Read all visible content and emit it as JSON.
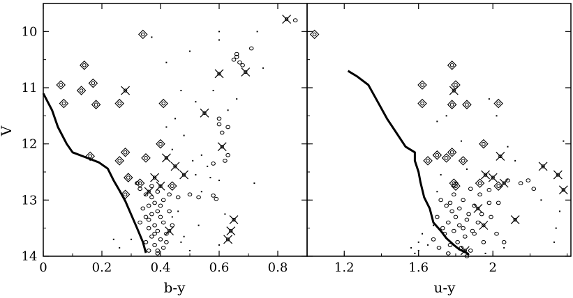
{
  "chart_data": [
    {
      "type": "scatter",
      "panel": "left",
      "xlabel": "b-y",
      "ylabel": "V",
      "xlim": [
        0,
        0.9
      ],
      "ylim": [
        14,
        9.5
      ],
      "y_inverted": true,
      "x_ticks": [
        0,
        0.2,
        0.4,
        0.6,
        0.8
      ],
      "x_tick_labels": [
        "0",
        "0.2",
        "0.4",
        "0.6",
        "0.8"
      ],
      "y_ticks": [
        10,
        11,
        12,
        13,
        14
      ],
      "y_tick_labels": [
        "10",
        "11",
        "12",
        "13",
        "14"
      ],
      "series": [
        {
          "marker": "cross",
          "points": [
            [
              0.28,
              11.05
            ],
            [
              0.55,
              11.45
            ],
            [
              0.6,
              10.75
            ],
            [
              0.69,
              10.72
            ],
            [
              0.83,
              9.78
            ],
            [
              0.61,
              12.05
            ],
            [
              0.45,
              12.4
            ],
            [
              0.48,
              12.55
            ],
            [
              0.42,
              12.25
            ],
            [
              0.4,
              12.75
            ],
            [
              0.38,
              12.6
            ],
            [
              0.65,
              13.35
            ],
            [
              0.64,
              13.55
            ],
            [
              0.63,
              13.7
            ],
            [
              0.43,
              13.55
            ],
            [
              0.36,
              12.85
            ]
          ]
        },
        {
          "marker": "diamond",
          "points": [
            [
              0.34,
              10.05
            ],
            [
              0.14,
              10.6
            ],
            [
              0.06,
              10.95
            ],
            [
              0.13,
              11.05
            ],
            [
              0.17,
              10.92
            ],
            [
              0.07,
              11.28
            ],
            [
              0.18,
              11.3
            ],
            [
              0.26,
              11.28
            ],
            [
              0.41,
              11.28
            ],
            [
              0.16,
              12.22
            ],
            [
              0.26,
              12.3
            ],
            [
              0.28,
              12.15
            ],
            [
              0.4,
              12.0
            ],
            [
              0.35,
              12.25
            ],
            [
              0.29,
              12.6
            ],
            [
              0.28,
              12.9
            ],
            [
              0.44,
              12.75
            ],
            [
              0.33,
              12.7
            ]
          ]
        },
        {
          "marker": "circle",
          "points": [
            [
              0.32,
              12.7
            ],
            [
              0.33,
              12.8
            ],
            [
              0.35,
              12.9
            ],
            [
              0.37,
              12.95
            ],
            [
              0.38,
              13.05
            ],
            [
              0.36,
              13.1
            ],
            [
              0.39,
              13.2
            ],
            [
              0.37,
              13.25
            ],
            [
              0.35,
              13.3
            ],
            [
              0.4,
              13.3
            ],
            [
              0.41,
              13.4
            ],
            [
              0.38,
              13.45
            ],
            [
              0.36,
              13.5
            ],
            [
              0.39,
              13.55
            ],
            [
              0.42,
              13.6
            ],
            [
              0.37,
              13.65
            ],
            [
              0.4,
              13.7
            ],
            [
              0.35,
              13.75
            ],
            [
              0.38,
              13.8
            ],
            [
              0.41,
              13.85
            ],
            [
              0.36,
              13.9
            ],
            [
              0.39,
              13.95
            ],
            [
              0.37,
              12.75
            ],
            [
              0.39,
              12.85
            ],
            [
              0.41,
              13.0
            ],
            [
              0.34,
              13.15
            ],
            [
              0.43,
              13.2
            ],
            [
              0.44,
              13.45
            ],
            [
              0.33,
              13.4
            ],
            [
              0.42,
              13.75
            ],
            [
              0.38,
              13.6
            ],
            [
              0.4,
              13.1
            ],
            [
              0.36,
              13.35
            ],
            [
              0.39,
              13.9
            ],
            [
              0.43,
              12.9
            ],
            [
              0.46,
              12.95
            ],
            [
              0.5,
              12.9
            ],
            [
              0.53,
              12.95
            ],
            [
              0.58,
              12.92
            ],
            [
              0.59,
              12.98
            ],
            [
              0.6,
              11.65
            ],
            [
              0.6,
              11.55
            ],
            [
              0.61,
              11.8
            ],
            [
              0.63,
              11.7
            ],
            [
              0.62,
              12.3
            ],
            [
              0.63,
              12.2
            ],
            [
              0.58,
              12.35
            ],
            [
              0.65,
              10.5
            ],
            [
              0.66,
              10.45
            ],
            [
              0.67,
              10.55
            ],
            [
              0.68,
              10.6
            ],
            [
              0.66,
              10.4
            ],
            [
              0.71,
              10.3
            ],
            [
              0.86,
              9.8
            ]
          ]
        },
        {
          "marker": "dot",
          "points": [
            [
              0.6,
              10.0
            ],
            [
              0.5,
              10.35
            ],
            [
              0.42,
              10.55
            ],
            [
              0.47,
              11.05
            ],
            [
              0.52,
              11.25
            ],
            [
              0.45,
              11.55
            ],
            [
              0.48,
              11.85
            ],
            [
              0.44,
              12.1
            ],
            [
              0.51,
              12.3
            ],
            [
              0.54,
              12.2
            ],
            [
              0.56,
              12.4
            ],
            [
              0.57,
              12.6
            ],
            [
              0.6,
              12.65
            ],
            [
              0.62,
              13.25
            ],
            [
              0.72,
              12.7
            ],
            [
              0.54,
              12.85
            ],
            [
              0.32,
              13.5
            ],
            [
              0.3,
              13.7
            ],
            [
              0.26,
              13.85
            ],
            [
              0.44,
              13.3
            ],
            [
              0.48,
              13.65
            ],
            [
              0.5,
              13.9
            ],
            [
              0.53,
              13.45
            ],
            [
              0.47,
              13.75
            ],
            [
              0.6,
              13.8
            ],
            [
              0.46,
              13.2
            ],
            [
              0.73,
              10.0
            ],
            [
              0.66,
              11.2
            ],
            [
              0.63,
              11.4
            ],
            [
              0.58,
              11.05
            ],
            [
              0.42,
              11.7
            ],
            [
              0.52,
              12.55
            ],
            [
              0.37,
              10.1
            ],
            [
              0.6,
              10.15
            ],
            [
              0.75,
              10.65
            ],
            [
              0.24,
              13.7
            ]
          ]
        },
        {
          "marker": "line",
          "points": [
            [
              0.0,
              11.1
            ],
            [
              0.03,
              11.4
            ],
            [
              0.05,
              11.7
            ],
            [
              0.08,
              12.0
            ],
            [
              0.1,
              12.15
            ],
            [
              0.16,
              12.27
            ],
            [
              0.19,
              12.33
            ],
            [
              0.22,
              12.44
            ],
            [
              0.24,
              12.65
            ],
            [
              0.26,
              12.83
            ],
            [
              0.28,
              13.02
            ],
            [
              0.3,
              13.26
            ],
            [
              0.32,
              13.5
            ],
            [
              0.34,
              13.75
            ],
            [
              0.35,
              13.94
            ]
          ]
        }
      ]
    },
    {
      "type": "scatter",
      "panel": "right",
      "xlabel": "u-y",
      "ylabel": "",
      "xlim": [
        1.0,
        2.42
      ],
      "ylim": [
        14,
        9.5
      ],
      "y_inverted": true,
      "x_ticks": [
        1.2,
        1.6,
        2.0
      ],
      "x_tick_labels": [
        "1.2",
        "1.6",
        "2"
      ],
      "y_ticks": [
        10,
        11,
        12,
        13,
        14
      ],
      "y_tick_labels": [],
      "series": [
        {
          "marker": "cross",
          "points": [
            [
              1.79,
              11.05
            ],
            [
              2.04,
              12.22
            ],
            [
              2.0,
              12.6
            ],
            [
              2.06,
              12.7
            ],
            [
              2.27,
              12.4
            ],
            [
              2.35,
              12.55
            ],
            [
              2.38,
              12.82
            ],
            [
              2.12,
              13.35
            ],
            [
              1.96,
              12.55
            ],
            [
              1.92,
              13.15
            ],
            [
              1.95,
              13.45
            ],
            [
              1.85,
              13.9
            ]
          ]
        },
        {
          "marker": "diamond",
          "points": [
            [
              1.04,
              10.05
            ],
            [
              1.78,
              10.6
            ],
            [
              1.8,
              10.95
            ],
            [
              1.62,
              10.95
            ],
            [
              1.62,
              11.28
            ],
            [
              1.78,
              11.3
            ],
            [
              1.86,
              11.3
            ],
            [
              2.03,
              11.28
            ],
            [
              1.95,
              12.0
            ],
            [
              1.65,
              12.3
            ],
            [
              1.7,
              12.2
            ],
            [
              1.78,
              12.15
            ],
            [
              1.75,
              12.25
            ],
            [
              1.84,
              12.3
            ],
            [
              1.79,
              12.7
            ],
            [
              1.8,
              12.75
            ],
            [
              1.93,
              12.7
            ],
            [
              2.03,
              12.75
            ]
          ]
        },
        {
          "marker": "circle",
          "points": [
            [
              1.72,
              13.0
            ],
            [
              1.75,
              13.1
            ],
            [
              1.78,
              13.2
            ],
            [
              1.8,
              13.3
            ],
            [
              1.76,
              13.4
            ],
            [
              1.82,
              13.45
            ],
            [
              1.79,
              13.55
            ],
            [
              1.74,
              13.6
            ],
            [
              1.85,
              13.65
            ],
            [
              1.81,
              13.75
            ],
            [
              1.77,
              13.8
            ],
            [
              1.83,
              13.85
            ],
            [
              1.88,
              13.9
            ],
            [
              1.73,
              13.5
            ],
            [
              1.86,
              13.35
            ],
            [
              1.79,
              12.9
            ],
            [
              1.84,
              13.0
            ],
            [
              1.9,
              13.1
            ],
            [
              1.87,
              13.25
            ],
            [
              1.92,
              13.4
            ],
            [
              1.7,
              13.3
            ],
            [
              1.68,
              13.7
            ],
            [
              1.9,
              13.6
            ],
            [
              1.95,
              13.75
            ],
            [
              1.82,
              13.15
            ],
            [
              1.77,
              13.05
            ],
            [
              1.88,
              12.8
            ],
            [
              1.93,
              12.9
            ],
            [
              1.98,
              13.05
            ],
            [
              1.71,
              13.85
            ],
            [
              1.94,
              13.25
            ],
            [
              1.76,
              13.95
            ],
            [
              1.86,
              14.0
            ],
            [
              2.15,
              12.7
            ],
            [
              2.19,
              12.65
            ],
            [
              2.22,
              12.8
            ],
            [
              2.08,
              12.65
            ],
            [
              1.98,
              12.82
            ],
            [
              2.03,
              13.05
            ],
            [
              1.99,
              13.3
            ],
            [
              2.02,
              13.6
            ],
            [
              2.06,
              13.75
            ],
            [
              1.89,
              13.55
            ],
            [
              1.84,
              13.5
            ]
          ]
        },
        {
          "marker": "dot",
          "points": [
            [
              1.62,
              13.6
            ],
            [
              1.65,
              13.8
            ],
            [
              1.6,
              13.9
            ],
            [
              1.58,
              13.95
            ],
            [
              1.68,
              13.45
            ],
            [
              1.66,
              13.15
            ],
            [
              1.7,
              12.85
            ],
            [
              1.72,
              12.55
            ],
            [
              1.86,
              12.45
            ],
            [
              1.7,
              11.6
            ],
            [
              1.75,
              11.5
            ],
            [
              1.98,
              11.2
            ],
            [
              2.02,
              11.5
            ],
            [
              2.08,
              12.05
            ],
            [
              2.12,
              12.3
            ],
            [
              2.36,
              13.2
            ],
            [
              2.34,
              13.5
            ],
            [
              2.33,
              13.75
            ],
            [
              2.26,
              13.0
            ],
            [
              2.38,
              11.95
            ],
            [
              1.83,
              11.95
            ],
            [
              2.06,
              13.85
            ],
            [
              1.96,
              13.95
            ],
            [
              1.6,
              13.75
            ],
            [
              1.56,
              13.85
            ]
          ]
        },
        {
          "marker": "line",
          "points": [
            [
              1.22,
              10.7
            ],
            [
              1.27,
              10.8
            ],
            [
              1.33,
              10.95
            ],
            [
              1.38,
              11.25
            ],
            [
              1.43,
              11.55
            ],
            [
              1.48,
              11.8
            ],
            [
              1.53,
              12.05
            ],
            [
              1.58,
              12.15
            ],
            [
              1.58,
              12.3
            ],
            [
              1.6,
              12.5
            ],
            [
              1.61,
              12.68
            ],
            [
              1.63,
              12.95
            ],
            [
              1.66,
              13.15
            ],
            [
              1.68,
              13.4
            ],
            [
              1.72,
              13.55
            ],
            [
              1.75,
              13.68
            ],
            [
              1.79,
              13.8
            ],
            [
              1.82,
              13.88
            ],
            [
              1.87,
              13.96
            ]
          ]
        }
      ]
    }
  ]
}
